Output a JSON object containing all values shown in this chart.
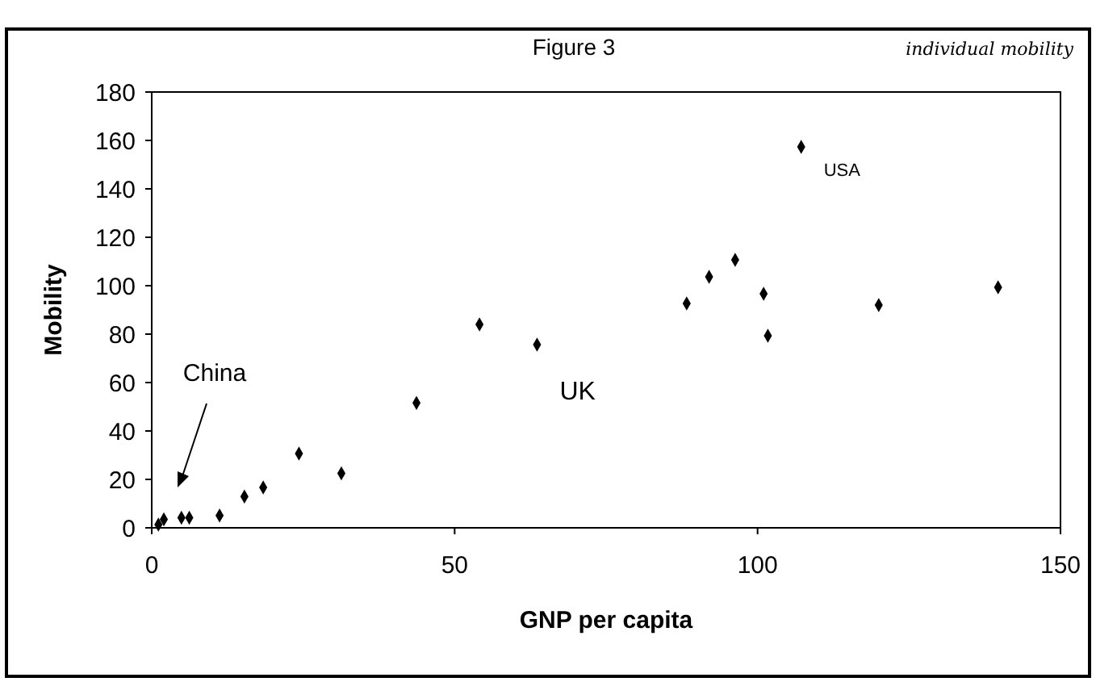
{
  "chart_data": {
    "type": "scatter",
    "title": "Figure 3",
    "xlabel": "GNP per capita",
    "ylabel": "Mobility",
    "x": [
      1.1,
      2.0,
      4.9,
      6.2,
      11.2,
      15.3,
      18.4,
      24.3,
      31.3,
      43.7,
      54.1,
      63.6,
      88.3,
      92,
      96.3,
      101,
      101.7,
      107.2,
      120,
      139.7
    ],
    "series": [
      {
        "color": "#000000",
        "values": [
          1.3,
          3.5,
          4.2,
          4.2,
          5.1,
          12.9,
          16.7,
          30.7,
          22.5,
          51.6,
          84,
          75.7,
          92.7,
          103.7,
          110.7,
          96.7,
          79.3,
          157.3,
          92,
          99.3
        ]
      }
    ],
    "xlim": [
      0,
      150
    ],
    "xticks": [
      0,
      50,
      100,
      150
    ],
    "ylim": [
      0,
      180
    ],
    "yticks": [
      0,
      20,
      40,
      60,
      80,
      100,
      120,
      140,
      160,
      180
    ],
    "marker": "diamond",
    "grid": false,
    "annotations": [
      "China",
      {
        "text": "UK",
        "x": 63.6,
        "y": 75.7
      },
      {
        "text": "USA",
        "x": 107.2,
        "y": 157.3
      },
      "individual mobility"
    ]
  }
}
